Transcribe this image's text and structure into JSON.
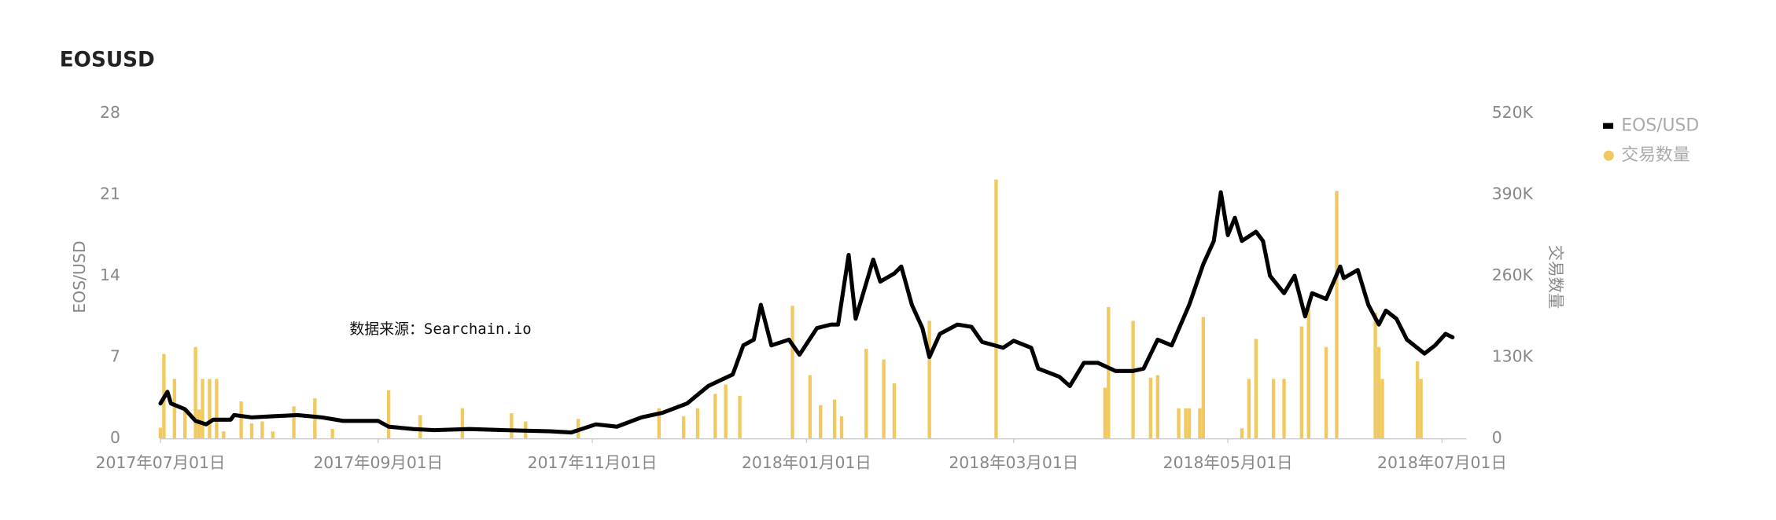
{
  "chart_data": {
    "type": "line",
    "title": "EOSUSD",
    "annotation": "数据来源：Searchain.io",
    "ylabel": "EOS/USD",
    "y2label": "交易数量",
    "xlim": [
      "2017-07-01",
      "2018-07-08"
    ],
    "xticks": [
      {
        "value": "2017-07-01",
        "label": "2017年07月01日"
      },
      {
        "value": "2017-09-01",
        "label": "2017年09月01日"
      },
      {
        "value": "2017-11-01",
        "label": "2017年11月01日"
      },
      {
        "value": "2018-01-01",
        "label": "2018年01月01日"
      },
      {
        "value": "2018-03-01",
        "label": "2018年03月01日"
      },
      {
        "value": "2018-05-01",
        "label": "2018年05月01日"
      },
      {
        "value": "2018-07-01",
        "label": "2018年07月01日"
      }
    ],
    "ylim": [
      0,
      28
    ],
    "yticks": [
      0,
      7,
      14,
      21,
      28
    ],
    "y2lim": [
      0,
      520000
    ],
    "y2ticks": [
      0,
      {
        "value": 130000,
        "label": "130K"
      },
      {
        "value": 260000,
        "label": "260K"
      },
      {
        "value": 390000,
        "label": "390K"
      },
      {
        "value": 520000,
        "label": "520K"
      }
    ],
    "series": [
      {
        "name": "EOS/USD",
        "color": "#000000",
        "type": "line",
        "x": [
          "2017-07-01",
          "2017-07-03",
          "2017-07-04",
          "2017-07-08",
          "2017-07-11",
          "2017-07-14",
          "2017-07-16",
          "2017-07-21",
          "2017-07-22",
          "2017-07-27",
          "2017-08-02",
          "2017-08-09",
          "2017-08-16",
          "2017-08-22",
          "2017-09-01",
          "2017-09-04",
          "2017-09-11",
          "2017-09-17",
          "2017-09-27",
          "2017-10-07",
          "2017-10-20",
          "2017-10-26",
          "2017-11-02",
          "2017-11-08",
          "2017-11-15",
          "2017-11-21",
          "2017-11-28",
          "2017-12-04",
          "2017-12-11",
          "2017-12-14",
          "2017-12-17",
          "2017-12-19",
          "2017-12-22",
          "2017-12-27",
          "2017-12-30",
          "2018-01-04",
          "2018-01-08",
          "2018-01-10",
          "2018-01-13",
          "2018-01-15",
          "2018-01-20",
          "2018-01-22",
          "2018-01-26",
          "2018-01-28",
          "2018-01-31",
          "2018-02-03",
          "2018-02-05",
          "2018-02-08",
          "2018-02-13",
          "2018-02-17",
          "2018-02-20",
          "2018-02-26",
          "2018-03-01",
          "2018-03-06",
          "2018-03-08",
          "2018-03-14",
          "2018-03-17",
          "2018-03-21",
          "2018-03-25",
          "2018-03-30",
          "2018-04-04",
          "2018-04-07",
          "2018-04-11",
          "2018-04-15",
          "2018-04-20",
          "2018-04-24",
          "2018-04-27",
          "2018-04-29",
          "2018-05-01",
          "2018-05-03",
          "2018-05-05",
          "2018-05-09",
          "2018-05-11",
          "2018-05-13",
          "2018-05-17",
          "2018-05-20",
          "2018-05-23",
          "2018-05-25",
          "2018-05-29",
          "2018-06-02",
          "2018-06-03",
          "2018-06-07",
          "2018-06-10",
          "2018-06-13",
          "2018-06-15",
          "2018-06-18",
          "2018-06-21",
          "2018-06-26",
          "2018-06-29",
          "2018-07-02",
          "2018-07-04"
        ],
        "values": [
          3.0,
          4.0,
          3.0,
          2.5,
          1.5,
          1.2,
          1.6,
          1.6,
          2.0,
          1.8,
          1.9,
          2.0,
          1.8,
          1.5,
          1.5,
          1.0,
          0.8,
          0.7,
          0.8,
          0.7,
          0.6,
          0.5,
          1.2,
          1.0,
          1.8,
          2.2,
          3.0,
          4.5,
          5.5,
          8.0,
          8.5,
          11.5,
          8.0,
          8.5,
          7.2,
          9.5,
          9.8,
          9.8,
          15.8,
          10.3,
          15.4,
          13.5,
          14.2,
          14.8,
          11.5,
          9.5,
          7.0,
          9.0,
          9.8,
          9.6,
          8.3,
          7.8,
          8.4,
          7.8,
          6.0,
          5.3,
          4.5,
          6.5,
          6.5,
          5.8,
          5.8,
          6.0,
          8.5,
          8.0,
          11.5,
          15.0,
          17.0,
          21.2,
          17.5,
          19.0,
          17.0,
          17.8,
          17.0,
          14.0,
          12.5,
          14.0,
          10.5,
          12.5,
          12.0,
          14.8,
          13.8,
          14.5,
          11.5,
          9.8,
          11.0,
          10.3,
          8.5,
          7.3,
          8.0,
          9.0,
          8.7
        ]
      },
      {
        "name": "交易数量",
        "color": "#f0c960",
        "type": "bar",
        "axis": "y2",
        "x": [
          "2017-07-01",
          "2017-07-02",
          "2017-07-05",
          "2017-07-08",
          "2017-07-11",
          "2017-07-12",
          "2017-07-13",
          "2017-07-15",
          "2017-07-17",
          "2017-07-19",
          "2017-07-24",
          "2017-07-27",
          "2017-07-30",
          "2017-08-02",
          "2017-08-08",
          "2017-08-14",
          "2017-08-19",
          "2017-09-04",
          "2017-09-13",
          "2017-09-25",
          "2017-10-09",
          "2017-10-13",
          "2017-10-28",
          "2017-11-20",
          "2017-11-27",
          "2017-12-01",
          "2017-12-06",
          "2017-12-09",
          "2017-12-13",
          "2017-12-28",
          "2018-01-02",
          "2018-01-05",
          "2018-01-09",
          "2018-01-11",
          "2018-01-18",
          "2018-01-23",
          "2018-01-26",
          "2018-02-05",
          "2018-02-24",
          "2018-03-27",
          "2018-03-28",
          "2018-04-04",
          "2018-04-09",
          "2018-04-11",
          "2018-04-17",
          "2018-04-19",
          "2018-04-20",
          "2018-04-23",
          "2018-04-24",
          "2018-05-05",
          "2018-05-07",
          "2018-05-09",
          "2018-05-14",
          "2018-05-17",
          "2018-05-22",
          "2018-05-24",
          "2018-05-29",
          "2018-06-01",
          "2018-06-12",
          "2018-06-13",
          "2018-06-14",
          "2018-06-24",
          "2018-06-25"
        ],
        "values": [
          17000,
          135000,
          95000,
          48000,
          146000,
          46000,
          95000,
          95000,
          95000,
          11000,
          59000,
          24000,
          27000,
          11000,
          51000,
          64000,
          15000,
          77000,
          37000,
          48000,
          40000,
          27000,
          31000,
          48000,
          35000,
          48000,
          71000,
          86000,
          68000,
          212000,
          101000,
          53000,
          62000,
          35000,
          143000,
          126000,
          88000,
          188000,
          414000,
          81000,
          210000,
          188000,
          97000,
          101000,
          48000,
          48000,
          48000,
          48000,
          194000,
          16000,
          95000,
          159000,
          95000,
          95000,
          179000,
          207000,
          146000,
          396000,
          201000,
          146000,
          95000,
          123000,
          95000
        ]
      }
    ]
  }
}
